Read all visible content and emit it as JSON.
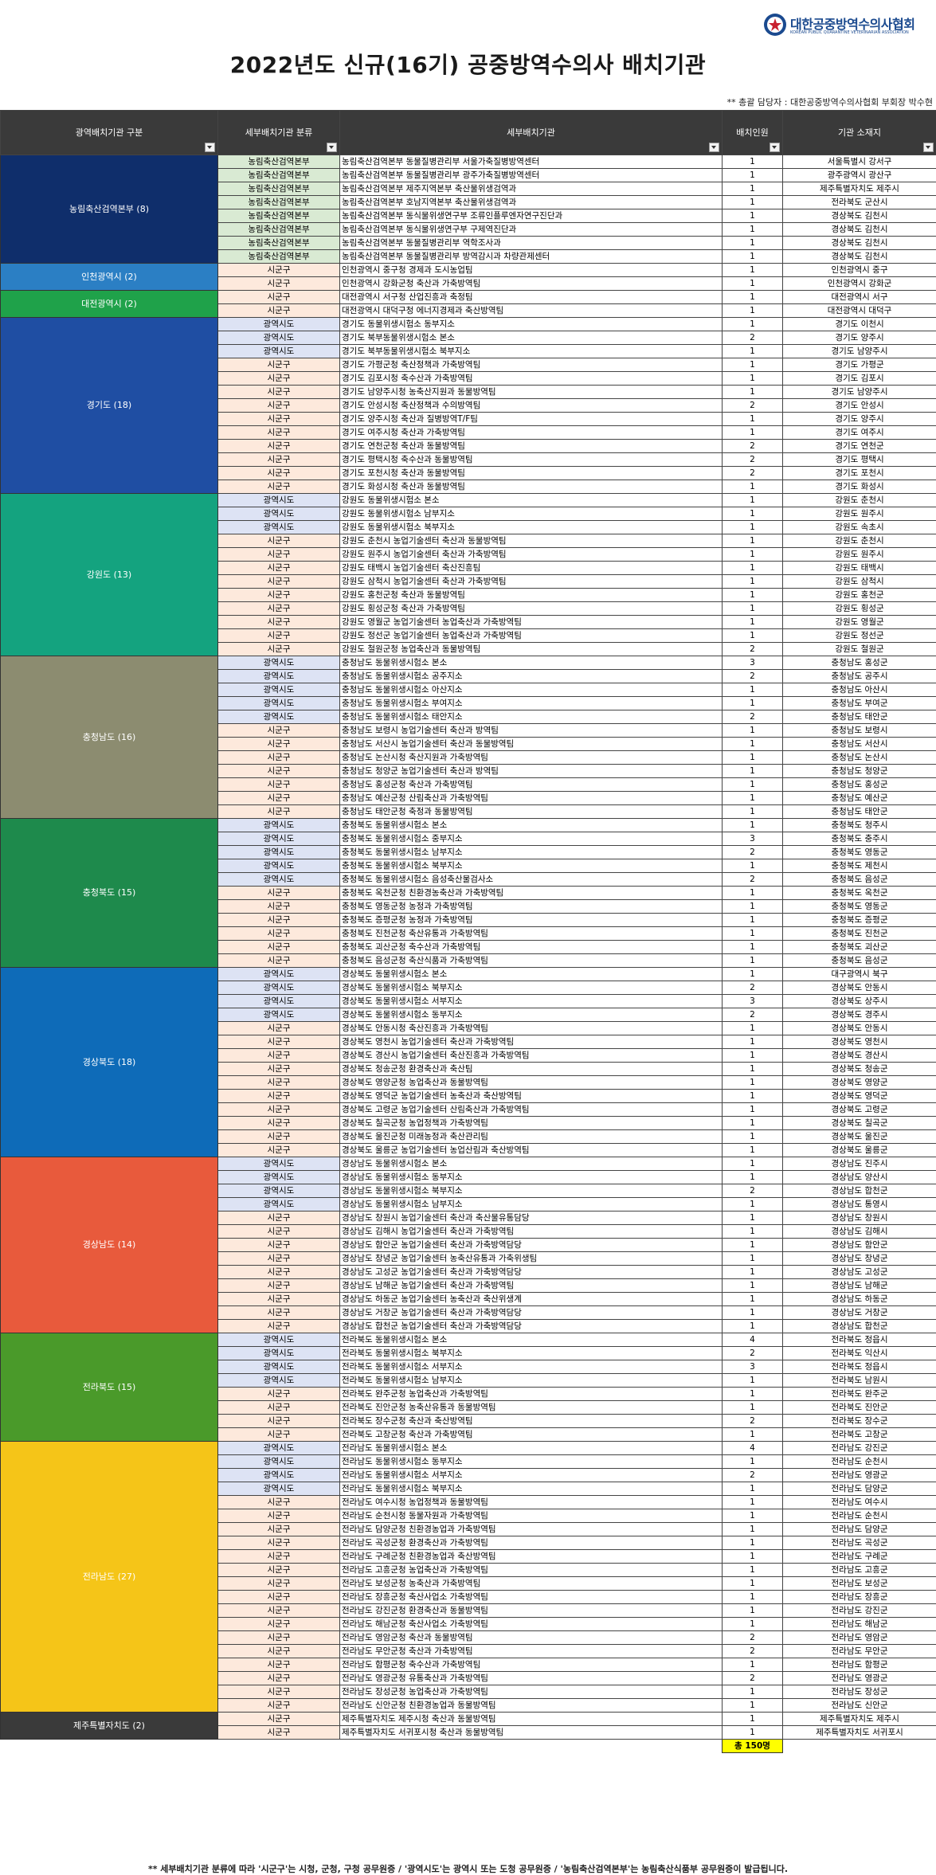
{
  "header": {
    "org_name": "대한공중방역수의사협회",
    "org_name_en": "KOREAN PUBLIC QUARANTINE VETERINARIAN ASSOCIATION",
    "title": "2022년도 신규(16기) 공중방역수의사 배치기관",
    "manager": "** 총괄 담당자 : 대한공중방역수의사협회 부회장 박수현"
  },
  "columns": [
    "광역배치기관 구분",
    "세부배치기관 분류",
    "세부배치기관",
    "배치인원",
    "기관 소재지"
  ],
  "colors": {
    "header_bg": "#3a3a3a",
    "cat_nong": "#d9ead3",
    "cat_gwang": "#dde3f4",
    "cat_sigun": "#fde9dc",
    "total_bg": "#ffff00"
  },
  "regions": [
    {
      "label": "농림축산검역본부 (8)",
      "color": "#0f2e6b",
      "rows": [
        [
          "농림축산검역본부",
          "농림축산검역본부 동물질병관리부 서울가축질병방역센터",
          "1",
          "서울특별시 강서구"
        ],
        [
          "농림축산검역본부",
          "농림축산검역본부 동물질병관리부 광주가축질병방역센터",
          "1",
          "광주광역시 광산구"
        ],
        [
          "농림축산검역본부",
          "농림축산검역본부 제주지역본부 축산물위생검역과",
          "1",
          "제주특별자치도 제주시"
        ],
        [
          "농림축산검역본부",
          "농림축산검역본부 호남지역본부 축산물위생검역과",
          "1",
          "전라북도 군산시"
        ],
        [
          "농림축산검역본부",
          "농림축산검역본부 동식물위생연구부 조류인플루엔자연구진단과",
          "1",
          "경상북도 김천시"
        ],
        [
          "농림축산검역본부",
          "농림축산검역본부 동식물위생연구부 구제역진단과",
          "1",
          "경상북도 김천시"
        ],
        [
          "농림축산검역본부",
          "농림축산검역본부 동물질병관리부 역학조사과",
          "1",
          "경상북도 김천시"
        ],
        [
          "농림축산검역본부",
          "농림축산검역본부 동물질병관리부 방역감시과 차량관제센터",
          "1",
          "경상북도 김천시"
        ]
      ]
    },
    {
      "label": "인천광역시 (2)",
      "color": "#2b7fc4",
      "rows": [
        [
          "시군구",
          "인천광역시 중구청 경제과 도시농업팀",
          "1",
          "인천광역시 중구"
        ],
        [
          "시군구",
          "인천광역시 강화군청 축산과 가축방역팀",
          "1",
          "인천광역시 강화군"
        ]
      ]
    },
    {
      "label": "대전광역시 (2)",
      "color": "#1fa24a",
      "rows": [
        [
          "시군구",
          "대전광역시 서구청 산업진흥과 축정팀",
          "1",
          "대전광역시 서구"
        ],
        [
          "시군구",
          "대전광역시 대덕구청 에너지경제과 축산방역팀",
          "1",
          "대전광역시 대덕구"
        ]
      ]
    },
    {
      "label": "경기도 (18)",
      "color": "#1f4ea3",
      "rows": [
        [
          "광역시도",
          "경기도 동물위생시험소 동부지소",
          "1",
          "경기도 이천시"
        ],
        [
          "광역시도",
          "경기도 북부동물위생시험소 본소",
          "2",
          "경기도 양주시"
        ],
        [
          "광역시도",
          "경기도 북부동물위생시험소 북부지소",
          "1",
          "경기도 남양주시"
        ],
        [
          "시군구",
          "경기도 가평군청 축산정책과 가축방역팀",
          "1",
          "경기도 가평군"
        ],
        [
          "시군구",
          "경기도 김포시청 축수산과 가축방역팀",
          "1",
          "경기도 김포시"
        ],
        [
          "시군구",
          "경기도 남양주시청 농축산지원과 동물방역팀",
          "1",
          "경기도 남양주시"
        ],
        [
          "시군구",
          "경기도 안성시청 축산정책과 수의방역팀",
          "2",
          "경기도 안성시"
        ],
        [
          "시군구",
          "경기도 양주시청 축산과 질병방역T/F팀",
          "1",
          "경기도 양주시"
        ],
        [
          "시군구",
          "경기도 여주시청 축산과 가축방역팀",
          "1",
          "경기도 여주시"
        ],
        [
          "시군구",
          "경기도 연천군청 축산과 동물방역팀",
          "2",
          "경기도 연천군"
        ],
        [
          "시군구",
          "경기도 평택시청 축수산과 동물방역팀",
          "2",
          "경기도 평택시"
        ],
        [
          "시군구",
          "경기도 포천시청 축산과 동물방역팀",
          "2",
          "경기도 포천시"
        ],
        [
          "시군구",
          "경기도 화성시청 축산과 동물방역팀",
          "1",
          "경기도 화성시"
        ]
      ]
    },
    {
      "label": "강원도 (13)",
      "color": "#14a37f",
      "rows": [
        [
          "광역시도",
          "강원도 동물위생시험소 본소",
          "1",
          "강원도 춘천시"
        ],
        [
          "광역시도",
          "강원도 동물위생시험소 남부지소",
          "1",
          "강원도 원주시"
        ],
        [
          "광역시도",
          "강원도 동물위생시험소 북부지소",
          "1",
          "강원도 속초시"
        ],
        [
          "시군구",
          "강원도 춘천시 농업기술센터 축산과 동물방역팀",
          "1",
          "강원도 춘천시"
        ],
        [
          "시군구",
          "강원도 원주시 농업기술센터 축산과 가축방역팀",
          "1",
          "강원도 원주시"
        ],
        [
          "시군구",
          "강원도 태백시 농업기술센터 축산진흥팀",
          "1",
          "강원도 태백시"
        ],
        [
          "시군구",
          "강원도 삼척시 농업기술센터 축산과 가축방역팀",
          "1",
          "강원도 삼척시"
        ],
        [
          "시군구",
          "강원도 홍천군청 축산과 동물방역팀",
          "1",
          "강원도 홍천군"
        ],
        [
          "시군구",
          "강원도 횡성군청 축산과 가축방역팀",
          "1",
          "강원도 횡성군"
        ],
        [
          "시군구",
          "강원도 영월군 농업기술센터 농업축산과 가축방역팀",
          "1",
          "강원도 영월군"
        ],
        [
          "시군구",
          "강원도 정선군 농업기술센터 농업축산과 가축방역팀",
          "1",
          "강원도 정선군"
        ],
        [
          "시군구",
          "강원도 철원군청 농업축산과 동물방역팀",
          "2",
          "강원도 철원군"
        ]
      ]
    },
    {
      "label": "충청남도 (16)",
      "color": "#8c8c70",
      "rows": [
        [
          "광역시도",
          "충청남도 동물위생시험소 본소",
          "3",
          "충청남도 홍성군"
        ],
        [
          "광역시도",
          "충청남도 동물위생시험소 공주지소",
          "2",
          "충청남도 공주시"
        ],
        [
          "광역시도",
          "충청남도 동물위생시험소 아산지소",
          "1",
          "충청남도 아산시"
        ],
        [
          "광역시도",
          "충청남도 동물위생시험소 부여지소",
          "1",
          "충청남도 부여군"
        ],
        [
          "광역시도",
          "충청남도 동물위생시험소 태안지소",
          "2",
          "충청남도 태안군"
        ],
        [
          "시군구",
          "충청남도 보령시 농업기술센터 축산과 방역팀",
          "1",
          "충청남도 보령시"
        ],
        [
          "시군구",
          "충청남도 서산시 농업기술센터 축산과 동물방역팀",
          "1",
          "충청남도 서산시"
        ],
        [
          "시군구",
          "충청남도 논산시청 축산지원과 가축방역팀",
          "1",
          "충청남도 논산시"
        ],
        [
          "시군구",
          "충청남도 청양군 농업기술센터 축산과 방역팀",
          "1",
          "충청남도 청양군"
        ],
        [
          "시군구",
          "충청남도 홍성군청 축산과 가축방역팀",
          "1",
          "충청남도 홍성군"
        ],
        [
          "시군구",
          "충청남도 예산군청 산림축산과 가축방역팀",
          "1",
          "충청남도 예산군"
        ],
        [
          "시군구",
          "충청남도 태안군청 축정과 동물방역팀",
          "1",
          "충청남도 태안군"
        ]
      ]
    },
    {
      "label": "충청북도 (15)",
      "color": "#1e8a4c",
      "rows": [
        [
          "광역시도",
          "충청북도 동물위생시험소 본소",
          "1",
          "충청북도 청주시"
        ],
        [
          "광역시도",
          "충청북도 동물위생시험소 중부지소",
          "3",
          "충청북도 충주시"
        ],
        [
          "광역시도",
          "충청북도 동물위생시험소 남부지소",
          "2",
          "충청북도 영동군"
        ],
        [
          "광역시도",
          "충청북도 동물위생시험소 북부지소",
          "1",
          "충청북도 제천시"
        ],
        [
          "광역시도",
          "충청북도 동물위생시험소 음성축산물검사소",
          "2",
          "충청북도 음성군"
        ],
        [
          "시군구",
          "충청북도 옥천군청 친환경농축산과 가축방역팀",
          "1",
          "충청북도 옥천군"
        ],
        [
          "시군구",
          "충청북도 영동군청 농정과 가축방역팀",
          "1",
          "충청북도 영동군"
        ],
        [
          "시군구",
          "충청북도 증평군청 농정과 가축방역팀",
          "1",
          "충청북도 증평군"
        ],
        [
          "시군구",
          "충청북도 진천군청 축산유통과 가축방역팀",
          "1",
          "충청북도 진천군"
        ],
        [
          "시군구",
          "충청북도 괴산군청 축수산과 가축방역팀",
          "1",
          "충청북도 괴산군"
        ],
        [
          "시군구",
          "충청북도 음성군청 축산식품과 가축방역팀",
          "1",
          "충청북도 음성군"
        ]
      ]
    },
    {
      "label": "경상북도 (18)",
      "color": "#0e6bb8",
      "rows": [
        [
          "광역시도",
          "경상북도 동물위생시험소 본소",
          "1",
          "대구광역시 북구"
        ],
        [
          "광역시도",
          "경상북도 동물위생시험소 북부지소",
          "2",
          "경상북도 안동시"
        ],
        [
          "광역시도",
          "경상북도 동물위생시험소 서부지소",
          "3",
          "경상북도 상주시"
        ],
        [
          "광역시도",
          "경상북도 동물위생시험소 동부지소",
          "2",
          "경상북도 경주시"
        ],
        [
          "시군구",
          "경상북도 안동시청 축산진흥과 가축방역팀",
          "1",
          "경상북도 안동시"
        ],
        [
          "시군구",
          "경상북도 영천시 농업기술센터 축산과 가축방역팀",
          "1",
          "경상북도 영천시"
        ],
        [
          "시군구",
          "경상북도 경산시 농업기술센터 축산진흥과 가축방역팀",
          "1",
          "경상북도 경산시"
        ],
        [
          "시군구",
          "경상북도 청송군청 환경축산과 축산팀",
          "1",
          "경상북도 청송군"
        ],
        [
          "시군구",
          "경상북도 영양군청 농업축산과 동물방역팀",
          "1",
          "경상북도 영양군"
        ],
        [
          "시군구",
          "경상북도 영덕군 농업기술센터 농축산과 축산방역팀",
          "1",
          "경상북도 영덕군"
        ],
        [
          "시군구",
          "경상북도 고령군 농업기술센터 산림축산과 가축방역팀",
          "1",
          "경상북도 고령군"
        ],
        [
          "시군구",
          "경상북도 칠곡군청 농업정책과 가축방역팀",
          "1",
          "경상북도 칠곡군"
        ],
        [
          "시군구",
          "경상북도 울진군청 미래농정과 축산관리팀",
          "1",
          "경상북도 울진군"
        ],
        [
          "시군구",
          "경상북도 울릉군 농업기술센터 농업산림과 축산방역팀",
          "1",
          "경상북도 울릉군"
        ]
      ]
    },
    {
      "label": "경상남도 (14)",
      "color": "#e85a3c",
      "rows": [
        [
          "광역시도",
          "경상남도 동물위생시험소 본소",
          "1",
          "경상남도 진주시"
        ],
        [
          "광역시도",
          "경상남도 동물위생시험소 동부지소",
          "1",
          "경상남도 양산시"
        ],
        [
          "광역시도",
          "경상남도 동물위생시험소 북부지소",
          "2",
          "경상남도 합천군"
        ],
        [
          "광역시도",
          "경상남도 동물위생시험소 남부지소",
          "1",
          "경상남도 통영시"
        ],
        [
          "시군구",
          "경상남도 창원시 농업기술센터 축산과 축산물유통담당",
          "1",
          "경상남도 창원시"
        ],
        [
          "시군구",
          "경상남도 김해시 농업기술센터 축산과 가축방역팀",
          "1",
          "경상남도 김해시"
        ],
        [
          "시군구",
          "경상남도 함안군 농업기술센터 축산과 가축방역담당",
          "1",
          "경상남도 함안군"
        ],
        [
          "시군구",
          "경상남도 창녕군 농업기술센터 농축산유통과 가축위생팀",
          "1",
          "경상남도 창녕군"
        ],
        [
          "시군구",
          "경상남도 고성군 농업기술센터 축산과 가축방역담당",
          "1",
          "경상남도 고성군"
        ],
        [
          "시군구",
          "경상남도 남해군 농업기술센터 축산과 가축방역팀",
          "1",
          "경상남도 남해군"
        ],
        [
          "시군구",
          "경상남도 하동군 농업기술센터 농축산과 축산위생계",
          "1",
          "경상남도 하동군"
        ],
        [
          "시군구",
          "경상남도 거창군 농업기술센터 축산과 가축방역담당",
          "1",
          "경상남도 거창군"
        ],
        [
          "시군구",
          "경상남도 합천군 농업기술센터 축산과 가축방역담당",
          "1",
          "경상남도 합천군"
        ]
      ]
    },
    {
      "label": "전라북도 (15)",
      "color": "#4a9a2a",
      "rows": [
        [
          "광역시도",
          "전라북도 동물위생시험소 본소",
          "4",
          "전라북도 정읍시"
        ],
        [
          "광역시도",
          "전라북도 동물위생시험소 북부지소",
          "2",
          "전라북도 익산시"
        ],
        [
          "광역시도",
          "전라북도 동물위생시험소 서부지소",
          "3",
          "전라북도 정읍시"
        ],
        [
          "광역시도",
          "전라북도 동물위생시험소 남부지소",
          "1",
          "전라북도 남원시"
        ],
        [
          "시군구",
          "전라북도 완주군청 농업축산과 가축방역팀",
          "1",
          "전라북도 완주군"
        ],
        [
          "시군구",
          "전라북도 진안군청 농축산유통과 동물방역팀",
          "1",
          "전라북도 진안군"
        ],
        [
          "시군구",
          "전라북도 장수군청 축산과 축산방역팀",
          "2",
          "전라북도 장수군"
        ],
        [
          "시군구",
          "전라북도 고창군청 축산과 가축방역팀",
          "1",
          "전라북도 고창군"
        ]
      ]
    },
    {
      "label": "전라남도 (27)",
      "color": "#f5c518",
      "rows": [
        [
          "광역시도",
          "전라남도 동물위생시험소 본소",
          "4",
          "전라남도 강진군"
        ],
        [
          "광역시도",
          "전라남도 동물위생시험소 동부지소",
          "1",
          "전라남도 순천시"
        ],
        [
          "광역시도",
          "전라남도 동물위생시험소 서부지소",
          "2",
          "전라남도 영광군"
        ],
        [
          "광역시도",
          "전라남도 동물위생시험소 북부지소",
          "1",
          "전라남도 담양군"
        ],
        [
          "시군구",
          "전라남도 여수시청 농업정책과 동물방역팀",
          "1",
          "전라남도 여수시"
        ],
        [
          "시군구",
          "전라남도 순천시청 동물자원과 가축방역팀",
          "1",
          "전라남도 순천시"
        ],
        [
          "시군구",
          "전라남도 담양군청 친환경농업과 가축방역팀",
          "1",
          "전라남도 담양군"
        ],
        [
          "시군구",
          "전라남도 곡성군청 환경축산과 가축방역팀",
          "1",
          "전라남도 곡성군"
        ],
        [
          "시군구",
          "전라남도 구례군청 친환경농업과 축산방역팀",
          "1",
          "전라남도 구례군"
        ],
        [
          "시군구",
          "전라남도 고흥군청 농업축산과 가축방역팀",
          "1",
          "전라남도 고흥군"
        ],
        [
          "시군구",
          "전라남도 보성군청 농축산과 가축방역팀",
          "1",
          "전라남도 보성군"
        ],
        [
          "시군구",
          "전라남도 장흥군청 축산사업소 가축방역팀",
          "1",
          "전라남도 장흥군"
        ],
        [
          "시군구",
          "전라남도 강진군청 환경축산과 동물방역팀",
          "1",
          "전라남도 강진군"
        ],
        [
          "시군구",
          "전라남도 해남군청 축산사업소 가축방역팀",
          "1",
          "전라남도 해남군"
        ],
        [
          "시군구",
          "전라남도 영암군청 축산과 동물방역팀",
          "2",
          "전라남도 영암군"
        ],
        [
          "시군구",
          "전라남도 무안군청 축산과 가축방역팀",
          "2",
          "전라남도 무안군"
        ],
        [
          "시군구",
          "전라남도 함평군청 축수산과 가축방역팀",
          "1",
          "전라남도 함평군"
        ],
        [
          "시군구",
          "전라남도 영광군청 유통축산과 가축방역팀",
          "2",
          "전라남도 영광군"
        ],
        [
          "시군구",
          "전라남도 장성군청 농업축산과 가축방역팀",
          "1",
          "전라남도 장성군"
        ],
        [
          "시군구",
          "전라남도 신안군청 친환경농업과 동물방역팀",
          "1",
          "전라남도 신안군"
        ]
      ]
    },
    {
      "label": "제주특별자치도 (2)",
      "color": "#3a3a3a",
      "rows": [
        [
          "시군구",
          "제주특별자치도 제주시청 축산과 동물방역팀",
          "1",
          "제주특별자치도 제주시"
        ],
        [
          "시군구",
          "제주특별자치도 서귀포시청 축산과 동물방역팀",
          "1",
          "제주특별자치도 서귀포시"
        ]
      ]
    }
  ],
  "total": "총 150명",
  "footnote": "** 세부배치기관 분류에 따라 '시군구'는 시청, 군청, 구청 공무원증 / '광역시도'는 광역시 또는 도청 공무원증 / '농림축산검역본부'는 농림축산식품부 공무원증이 발급됩니다."
}
